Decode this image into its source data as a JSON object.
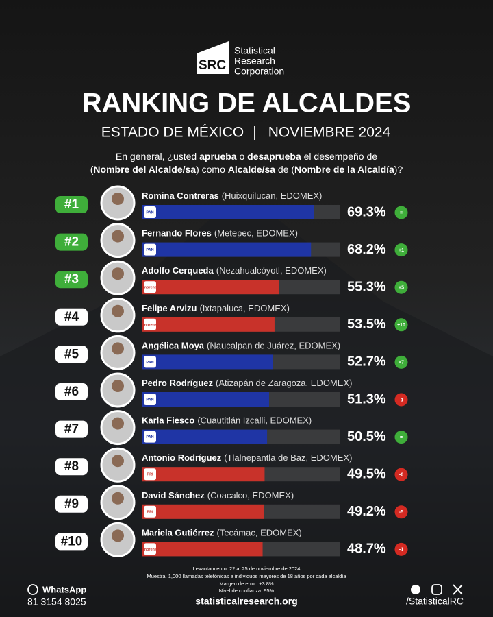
{
  "brand": {
    "mark": "SRC",
    "lines": [
      "Statistical",
      "Research",
      "Corporation"
    ]
  },
  "chart_data": {
    "type": "bar",
    "orientation": "horizontal",
    "title": "RANKING DE ALCALDES",
    "subtitle": [
      "ESTADO DE MÉXICO",
      "|",
      "NOVIEMBRE 2024"
    ],
    "question": [
      [
        {
          "text": "En general, ¿usted ",
          "bold": false
        },
        {
          "text": "aprueba",
          "bold": true
        },
        {
          "text": " o ",
          "bold": false
        },
        {
          "text": "desaprueba",
          "bold": true
        },
        {
          "text": " el desempeño de",
          "bold": false
        }
      ],
      [
        {
          "text": "(",
          "bold": false
        },
        {
          "text": "Nombre del Alcalde/sa",
          "bold": true
        },
        {
          "text": ") como ",
          "bold": false
        },
        {
          "text": "Alcalde/sa",
          "bold": true
        },
        {
          "text": " de (",
          "bold": false
        },
        {
          "text": "Nombre de la Alcaldía",
          "bold": true
        },
        {
          "text": ")?",
          "bold": false
        }
      ]
    ],
    "ranks": [
      "#1",
      "#2",
      "#3",
      "#4",
      "#5",
      "#6",
      "#7",
      "#8",
      "#9",
      "#10"
    ],
    "rank_colors": [
      "#3fae3a",
      "#3fae3a",
      "#3fae3a",
      "#ffffff",
      "#ffffff",
      "#ffffff",
      "#ffffff",
      "#ffffff",
      "#ffffff",
      "#ffffff"
    ],
    "categories": [
      "Romina Contreras",
      "Fernando Flores",
      "Adolfo Cerqueda",
      "Felipe Arvizu",
      "Angélica Moya",
      "Pedro Rodríguez",
      "Karla Fiesco",
      "Antonio Rodríguez",
      "David Sánchez",
      "Mariela Gutiérrez"
    ],
    "locations": [
      "(Huixquilucan, EDOMEX)",
      "(Metepec, EDOMEX)",
      "(Nezahualcóyotl, EDOMEX)",
      "(Ixtapaluca, EDOMEX)",
      "(Naucalpan de Juárez, EDOMEX)",
      "(Atizapán de Zaragoza, EDOMEX)",
      "(Cuautitlán Izcalli, EDOMEX)",
      "(Tlalnepantla de Baz, EDOMEX)",
      "(Coacalco, EDOMEX)",
      "(Tecámac, EDOMEX)"
    ],
    "parties": [
      "PAN",
      "PAN",
      "morena",
      "morena",
      "PAN",
      "PAN",
      "PAN",
      "PRI",
      "PRI",
      "morena"
    ],
    "party_colors": {
      "PAN": "#1f35a5",
      "morena": "#c8322a",
      "PRI": "#c8322a"
    },
    "values": [
      69.3,
      68.2,
      55.3,
      53.5,
      52.7,
      51.3,
      50.5,
      49.5,
      49.2,
      48.7
    ],
    "value_labels": [
      "69.3%",
      "68.2%",
      "55.3%",
      "53.5%",
      "52.7%",
      "51.3%",
      "50.5%",
      "49.5%",
      "49.2%",
      "48.7%"
    ],
    "changes": [
      "=",
      "+1",
      "+5",
      "+10",
      "+7",
      "-1",
      "=",
      "-6",
      "-5",
      "-1"
    ],
    "change_colors": [
      "#3fae3a",
      "#3fae3a",
      "#3fae3a",
      "#3fae3a",
      "#3fae3a",
      "#d42a22",
      "#3fae3a",
      "#d42a22",
      "#d42a22",
      "#d42a22"
    ],
    "xlim": [
      0,
      80
    ]
  },
  "notes": [
    "Levantamiento: 22 al 25 de noviembre de 2024",
    "Muestra: 1,000 llamadas telefónicas a individuos mayores de 18 años por cada alcaldía",
    "Margen de error: ±3.8%",
    "Nivel de confianza: 95%"
  ],
  "footer": {
    "whatsapp": "WhatsApp",
    "phone": "81 3154 8025",
    "website": "statisticalresearch.org",
    "handle": "/StatisticalRC"
  }
}
